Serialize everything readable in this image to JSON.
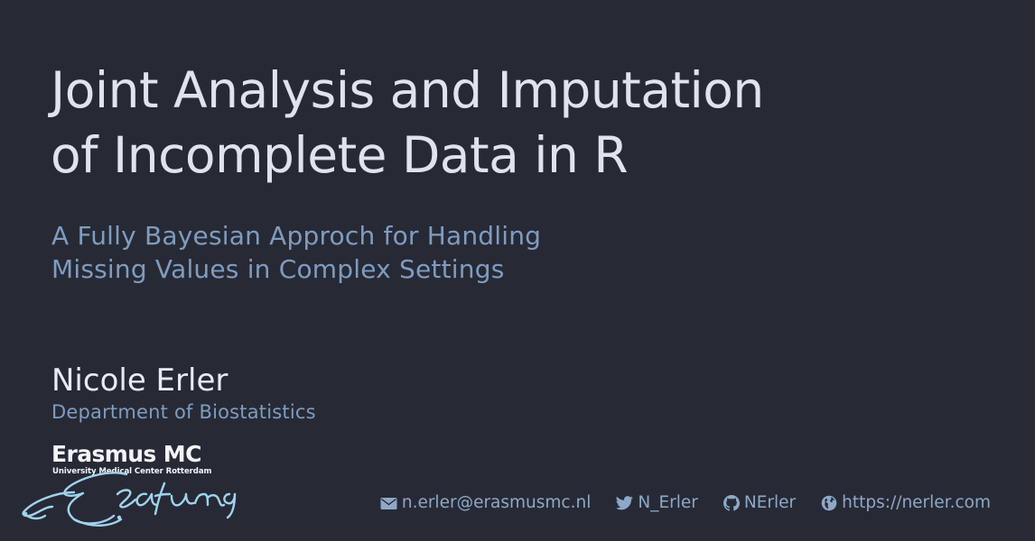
{
  "slide": {
    "title_lines": [
      "Joint Analysis and Imputation",
      "of Incomplete Data in R"
    ],
    "subtitle_lines": [
      "A Fully Bayesian Approch for Handling",
      "Missing Values in Complex Settings"
    ],
    "author": "Nicole Erler",
    "department": "Department of Biostatistics"
  },
  "logo": {
    "name": "Erasmus MC",
    "subtitle": "University Medical Center Rotterdam"
  },
  "footer": {
    "email": "n.erler@erasmusmc.nl",
    "twitter": "N_Erler",
    "github": "NErler",
    "website": "https://nerler.com",
    "icons": [
      "envelope-icon",
      "twitter-icon",
      "github-icon",
      "globe-icon"
    ]
  },
  "colors": {
    "background": "#272a35",
    "title": "#dfe3ee",
    "accent": "#7f9cc0",
    "footer": "#8ea8c8",
    "logo_swirl": "#9fd4ee"
  }
}
